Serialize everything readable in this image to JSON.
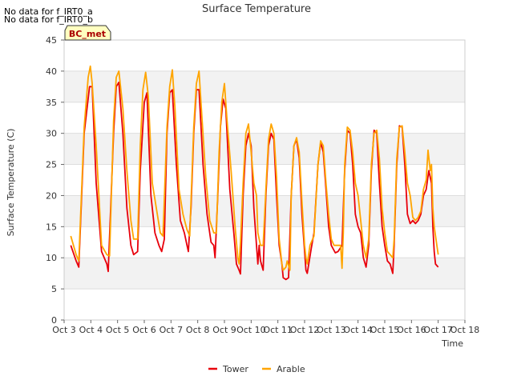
{
  "notes": [
    "No data for f_IRT0_a",
    "No data for f_IRT0_b"
  ],
  "badge": "BC_met",
  "chart_data": {
    "type": "line",
    "title": "Surface Temperature",
    "xlabel": "Time",
    "ylabel": "Surface Temperature (C)",
    "xlim": [
      3,
      18
    ],
    "ylim": [
      0,
      45
    ],
    "xticks": [
      3,
      4,
      5,
      6,
      7,
      8,
      9,
      10,
      11,
      12,
      13,
      14,
      15,
      16,
      17,
      18
    ],
    "xtick_labels": [
      "Oct 3",
      "Oct 4",
      "Oct 5",
      "Oct 6",
      "Oct 7",
      "Oct 8",
      "Oct 9",
      "Oct 10",
      "Oct 11",
      "Oct 12",
      "Oct 13",
      "Oct 14",
      "Oct 15",
      "Oct 16",
      "Oct 17",
      "Oct 18"
    ],
    "yticks": [
      0,
      5,
      10,
      15,
      20,
      25,
      30,
      35,
      40,
      45
    ],
    "grid": "horizontal bands",
    "legend_position": "bottom",
    "series": [
      {
        "name": "Tower",
        "color": "#e8000b",
        "points": [
          [
            3.25,
            12.0
          ],
          [
            3.45,
            9.5
          ],
          [
            3.55,
            8.5
          ],
          [
            3.75,
            30.0
          ],
          [
            3.95,
            37.5
          ],
          [
            4.05,
            37.5
          ],
          [
            4.2,
            22.0
          ],
          [
            4.4,
            11.0
          ],
          [
            4.6,
            9.0
          ],
          [
            4.65,
            7.8
          ],
          [
            4.85,
            30.0
          ],
          [
            4.95,
            37.5
          ],
          [
            5.05,
            38.2
          ],
          [
            5.2,
            30.0
          ],
          [
            5.35,
            18.0
          ],
          [
            5.5,
            12.0
          ],
          [
            5.6,
            10.5
          ],
          [
            5.75,
            11.0
          ],
          [
            5.85,
            24.0
          ],
          [
            6.0,
            35.0
          ],
          [
            6.1,
            36.5
          ],
          [
            6.25,
            20.0
          ],
          [
            6.4,
            14.0
          ],
          [
            6.55,
            12.0
          ],
          [
            6.65,
            11.0
          ],
          [
            6.75,
            13.0
          ],
          [
            6.85,
            30.0
          ],
          [
            6.95,
            36.5
          ],
          [
            7.05,
            37.0
          ],
          [
            7.2,
            25.0
          ],
          [
            7.35,
            16.0
          ],
          [
            7.5,
            14.0
          ],
          [
            7.6,
            12.0
          ],
          [
            7.65,
            11.0
          ],
          [
            7.75,
            18.0
          ],
          [
            7.85,
            30.0
          ],
          [
            7.95,
            37.0
          ],
          [
            8.05,
            37.0
          ],
          [
            8.2,
            25.0
          ],
          [
            8.35,
            17.0
          ],
          [
            8.5,
            12.5
          ],
          [
            8.6,
            12.0
          ],
          [
            8.65,
            10.0
          ],
          [
            8.75,
            20.0
          ],
          [
            8.85,
            31.0
          ],
          [
            8.95,
            35.5
          ],
          [
            9.05,
            34.0
          ],
          [
            9.2,
            21.0
          ],
          [
            9.35,
            14.0
          ],
          [
            9.45,
            9.0
          ],
          [
            9.55,
            8.0
          ],
          [
            9.6,
            7.4
          ],
          [
            9.7,
            20.0
          ],
          [
            9.8,
            28.0
          ],
          [
            9.9,
            30.0
          ],
          [
            10.0,
            28.0
          ],
          [
            10.1,
            18.0
          ],
          [
            10.2,
            12.0
          ],
          [
            10.25,
            9.0
          ],
          [
            10.3,
            12.0
          ],
          [
            10.35,
            9.5
          ],
          [
            10.45,
            8.0
          ],
          [
            10.55,
            20.0
          ],
          [
            10.65,
            28.0
          ],
          [
            10.75,
            30.0
          ],
          [
            10.85,
            29.0
          ],
          [
            10.95,
            20.0
          ],
          [
            11.05,
            12.0
          ],
          [
            11.15,
            9.0
          ],
          [
            11.2,
            6.8
          ],
          [
            11.3,
            6.5
          ],
          [
            11.4,
            6.8
          ],
          [
            11.5,
            20.0
          ],
          [
            11.6,
            28.0
          ],
          [
            11.7,
            29.0
          ],
          [
            11.8,
            26.0
          ],
          [
            11.9,
            17.0
          ],
          [
            12.0,
            11.0
          ],
          [
            12.05,
            8.0
          ],
          [
            12.1,
            7.5
          ],
          [
            12.25,
            11.5
          ],
          [
            12.35,
            14.0
          ],
          [
            12.5,
            25.0
          ],
          [
            12.6,
            28.5
          ],
          [
            12.7,
            27.0
          ],
          [
            12.8,
            21.0
          ],
          [
            12.9,
            15.0
          ],
          [
            13.0,
            12.0
          ],
          [
            13.15,
            10.8
          ],
          [
            13.25,
            11.0
          ],
          [
            13.4,
            12.0
          ],
          [
            13.5,
            24.0
          ],
          [
            13.6,
            30.5
          ],
          [
            13.7,
            30.0
          ],
          [
            13.8,
            25.0
          ],
          [
            13.9,
            17.0
          ],
          [
            14.0,
            15.0
          ],
          [
            14.1,
            14.0
          ],
          [
            14.2,
            10.0
          ],
          [
            14.3,
            8.5
          ],
          [
            14.4,
            12.0
          ],
          [
            14.5,
            24.0
          ],
          [
            14.6,
            30.5
          ],
          [
            14.7,
            30.0
          ],
          [
            14.8,
            22.0
          ],
          [
            14.9,
            15.0
          ],
          [
            15.0,
            12.0
          ],
          [
            15.1,
            9.5
          ],
          [
            15.2,
            9.0
          ],
          [
            15.3,
            7.5
          ],
          [
            15.35,
            12.0
          ],
          [
            15.45,
            25.0
          ],
          [
            15.55,
            31.2
          ],
          [
            15.65,
            31.0
          ],
          [
            15.75,
            25.0
          ],
          [
            15.85,
            17.0
          ],
          [
            15.95,
            15.5
          ],
          [
            16.05,
            16.0
          ],
          [
            16.15,
            15.5
          ],
          [
            16.25,
            16.0
          ],
          [
            16.35,
            17.0
          ],
          [
            16.45,
            20.0
          ],
          [
            16.55,
            21.0
          ],
          [
            16.65,
            24.0
          ],
          [
            16.75,
            22.0
          ],
          [
            16.8,
            15.0
          ],
          [
            16.85,
            11.0
          ],
          [
            16.9,
            9.0
          ],
          [
            17.0,
            8.5
          ]
        ]
      },
      {
        "name": "Arable",
        "color": "#ffa500",
        "points": [
          [
            3.25,
            13.5
          ],
          [
            3.45,
            10.5
          ],
          [
            3.55,
            9.5
          ],
          [
            3.75,
            31.0
          ],
          [
            3.9,
            39.0
          ],
          [
            3.98,
            40.8
          ],
          [
            4.05,
            38.0
          ],
          [
            4.2,
            28.0
          ],
          [
            4.4,
            12.0
          ],
          [
            4.6,
            10.5
          ],
          [
            4.7,
            10.3
          ],
          [
            4.85,
            32.0
          ],
          [
            4.95,
            39.0
          ],
          [
            5.05,
            40.0
          ],
          [
            5.2,
            34.0
          ],
          [
            5.35,
            24.0
          ],
          [
            5.5,
            16.0
          ],
          [
            5.6,
            13.0
          ],
          [
            5.75,
            13.0
          ],
          [
            5.85,
            28.0
          ],
          [
            5.95,
            37.0
          ],
          [
            6.05,
            39.8
          ],
          [
            6.15,
            36.0
          ],
          [
            6.3,
            22.0
          ],
          [
            6.45,
            18.0
          ],
          [
            6.6,
            14.0
          ],
          [
            6.7,
            13.5
          ],
          [
            6.85,
            31.0
          ],
          [
            6.95,
            37.5
          ],
          [
            7.05,
            40.2
          ],
          [
            7.15,
            34.0
          ],
          [
            7.3,
            21.0
          ],
          [
            7.45,
            17.0
          ],
          [
            7.6,
            14.5
          ],
          [
            7.7,
            13.5
          ],
          [
            7.85,
            31.0
          ],
          [
            7.95,
            38.0
          ],
          [
            8.05,
            40.0
          ],
          [
            8.15,
            33.0
          ],
          [
            8.3,
            23.0
          ],
          [
            8.45,
            16.0
          ],
          [
            8.6,
            14.0
          ],
          [
            8.7,
            14.0
          ],
          [
            8.8,
            27.0
          ],
          [
            8.9,
            35.0
          ],
          [
            9.0,
            38.0
          ],
          [
            9.1,
            32.0
          ],
          [
            9.25,
            24.0
          ],
          [
            9.4,
            15.0
          ],
          [
            9.5,
            10.0
          ],
          [
            9.55,
            9.0
          ],
          [
            9.6,
            12.5
          ],
          [
            9.7,
            22.0
          ],
          [
            9.8,
            30.0
          ],
          [
            9.9,
            31.5
          ],
          [
            10.0,
            27.0
          ],
          [
            10.1,
            22.0
          ],
          [
            10.2,
            20.0
          ],
          [
            10.25,
            14.0
          ],
          [
            10.35,
            12.0
          ],
          [
            10.45,
            12.0
          ],
          [
            10.55,
            21.0
          ],
          [
            10.65,
            29.0
          ],
          [
            10.75,
            31.5
          ],
          [
            10.85,
            30.0
          ],
          [
            10.95,
            23.0
          ],
          [
            11.05,
            13.0
          ],
          [
            11.15,
            9.0
          ],
          [
            11.2,
            8.0
          ],
          [
            11.3,
            8.5
          ],
          [
            11.35,
            9.5
          ],
          [
            11.45,
            8.0
          ],
          [
            11.5,
            20.0
          ],
          [
            11.6,
            28.0
          ],
          [
            11.7,
            29.3
          ],
          [
            11.8,
            27.0
          ],
          [
            11.9,
            19.0
          ],
          [
            12.0,
            12.0
          ],
          [
            12.05,
            10.0
          ],
          [
            12.1,
            9.0
          ],
          [
            12.2,
            12.0
          ],
          [
            12.35,
            13.5
          ],
          [
            12.5,
            25.0
          ],
          [
            12.6,
            28.8
          ],
          [
            12.7,
            28.0
          ],
          [
            12.8,
            22.0
          ],
          [
            12.9,
            17.0
          ],
          [
            13.0,
            13.0
          ],
          [
            13.1,
            12.0
          ],
          [
            13.25,
            12.0
          ],
          [
            13.35,
            12.0
          ],
          [
            13.4,
            8.3
          ],
          [
            13.45,
            14.0
          ],
          [
            13.5,
            25.0
          ],
          [
            13.6,
            31.0
          ],
          [
            13.7,
            30.5
          ],
          [
            13.8,
            27.0
          ],
          [
            13.9,
            22.0
          ],
          [
            14.0,
            20.0
          ],
          [
            14.1,
            16.0
          ],
          [
            14.2,
            12.0
          ],
          [
            14.3,
            10.0
          ],
          [
            14.4,
            13.0
          ],
          [
            14.5,
            25.0
          ],
          [
            14.6,
            30.0
          ],
          [
            14.7,
            30.5
          ],
          [
            14.8,
            26.0
          ],
          [
            14.9,
            18.0
          ],
          [
            15.0,
            14.0
          ],
          [
            15.1,
            11.0
          ],
          [
            15.2,
            10.5
          ],
          [
            15.3,
            10.0
          ],
          [
            15.35,
            13.0
          ],
          [
            15.45,
            26.0
          ],
          [
            15.55,
            31.0
          ],
          [
            15.65,
            31.2
          ],
          [
            15.75,
            27.0
          ],
          [
            15.85,
            22.0
          ],
          [
            15.95,
            20.0
          ],
          [
            16.05,
            16.5
          ],
          [
            16.15,
            16.0
          ],
          [
            16.25,
            16.5
          ],
          [
            16.35,
            17.5
          ],
          [
            16.45,
            21.0
          ],
          [
            16.55,
            22.5
          ],
          [
            16.62,
            27.3
          ],
          [
            16.7,
            24.0
          ],
          [
            16.75,
            25.0
          ],
          [
            16.8,
            18.0
          ],
          [
            16.85,
            15.0
          ],
          [
            16.95,
            12.0
          ],
          [
            17.0,
            10.5
          ]
        ]
      }
    ]
  }
}
